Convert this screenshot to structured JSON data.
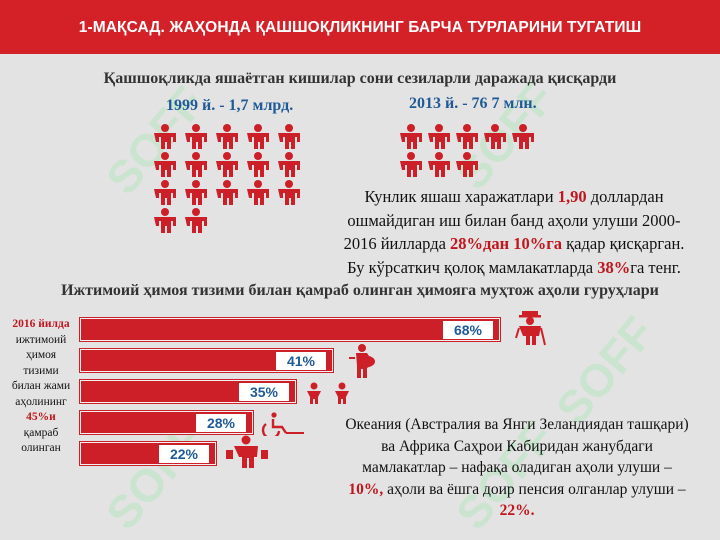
{
  "header": {
    "title": "1-МАҚСАД. ЖАҲОНДА ҚАШШОҚЛИКНИНГ БАРЧА ТУРЛАРИНИ ТУГАТИШ"
  },
  "watermark": {
    "text": "SOFF"
  },
  "section1": {
    "title": "Қашшоқликда яшаётган кишилар сони сезиларли даражада қисқарди",
    "left_label": "1999 й. - 1,7 млрд.",
    "right_label": "2013 й. - 76 7 млн.",
    "left_people_count": 17,
    "right_people_count": 8,
    "paragraph": {
      "line1_a": "Кунлик яшаш харажатлари ",
      "line1_b": "1,90",
      "line1_c": " доллардан",
      "line2": "ошмайдиган иш билан банд аҳоли улуши 2000-",
      "line3_a": "2016 йилларда ",
      "line3_b": "28%дан 10%га",
      "line3_c": " қадар қисқарган.",
      "line4_a": "Бу кўрсаткич қолоқ мамлакатларда ",
      "line4_b": "38%",
      "line4_c": "га тенг."
    }
  },
  "section2": {
    "title": "Ижтимоий ҳимоя тизими билан қамраб олинган ҳимояга муҳтож аҳоли гуруҳлари",
    "side_note": {
      "year": "2016 йилда",
      "body": "ижтимоий ҳимоя тизими билан жами аҳолининг",
      "value": "45%и",
      "tail": "қамраб олинган"
    },
    "bars": [
      {
        "label": "68%",
        "value": 68,
        "icon": "elderly-person-icon"
      },
      {
        "label": "41%",
        "value": 41,
        "icon": "pregnant-woman-icon"
      },
      {
        "label": "35%",
        "value": 35,
        "icon": "children-icon"
      },
      {
        "label": "28%",
        "value": 28,
        "icon": "wheelchair-icon"
      },
      {
        "label": "22%",
        "value": 22,
        "icon": "unemployed-person-icon"
      }
    ],
    "paragraph": {
      "line1": "Океания (Австралия ва Янги Зеландиядан ташқари)",
      "line2": "ва Африка Саҳрои Кабиридан жанубдаги",
      "line3": "мамлакатлар – нафақа оладиган аҳоли улуши –",
      "line4_a": "10%,",
      "line4_b": " аҳоли ва ёшга доир пенсия олганлар улуши –",
      "line5": "22%."
    }
  },
  "colors": {
    "accent": "#d42027",
    "label_blue": "#1f5a96",
    "background": "#e3e3e3"
  }
}
